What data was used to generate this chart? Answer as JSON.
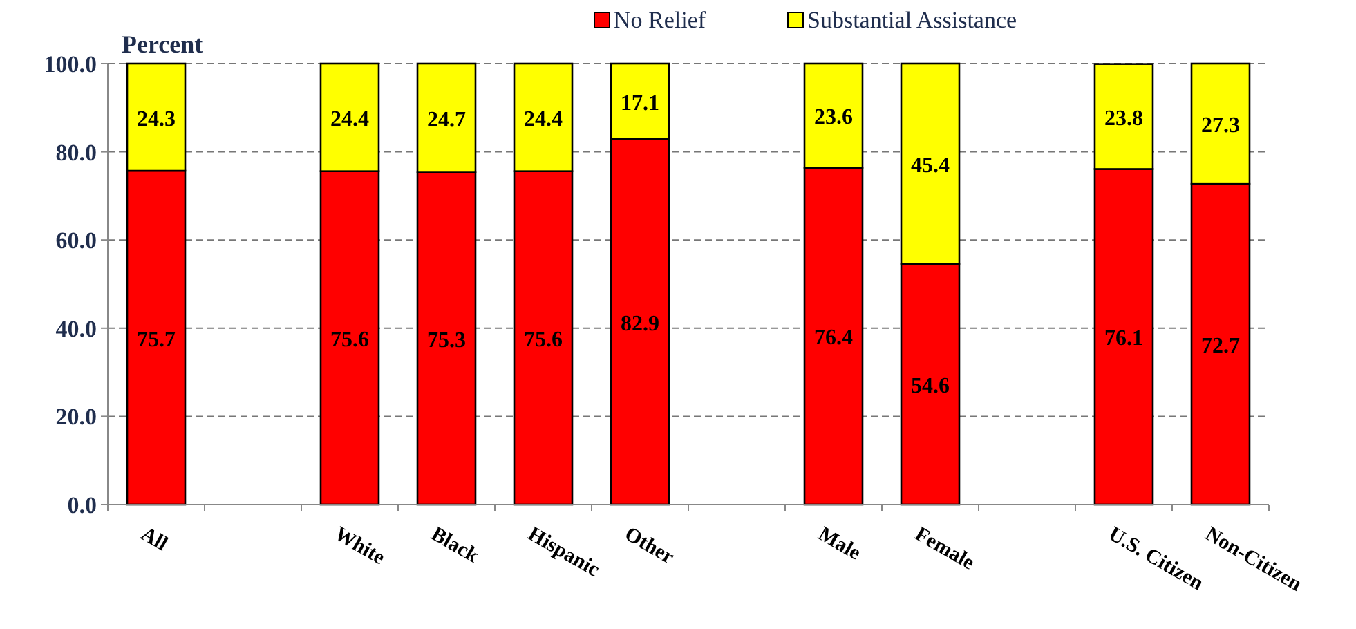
{
  "chart_data": {
    "type": "bar",
    "stacked": true,
    "ylabel": "Percent",
    "categories": [
      "All",
      null,
      "White",
      "Black",
      "Hispanic",
      "Other",
      null,
      "Male",
      "Female",
      null,
      "U.S. Citizen",
      "Non-Citizen"
    ],
    "series": [
      {
        "name": "No Relief",
        "color": "#ff0000",
        "values": [
          75.7,
          null,
          75.6,
          75.3,
          75.6,
          82.9,
          null,
          76.4,
          54.6,
          null,
          76.1,
          72.7
        ]
      },
      {
        "name": "Substantial Assistance",
        "color": "#ffff00",
        "values": [
          24.3,
          null,
          24.4,
          24.7,
          24.4,
          17.1,
          null,
          23.6,
          45.4,
          null,
          23.8,
          27.3
        ]
      }
    ],
    "ylim": [
      0,
      100
    ],
    "yticks": [
      {
        "value": 0,
        "label": "0.0"
      },
      {
        "value": 20,
        "label": "20.0"
      },
      {
        "value": 40,
        "label": "40.0"
      },
      {
        "value": 60,
        "label": "60.0"
      },
      {
        "value": 80,
        "label": "80.0"
      },
      {
        "value": 100,
        "label": "100.0"
      }
    ],
    "grid": "y",
    "legend": "top",
    "data_labels": true
  }
}
